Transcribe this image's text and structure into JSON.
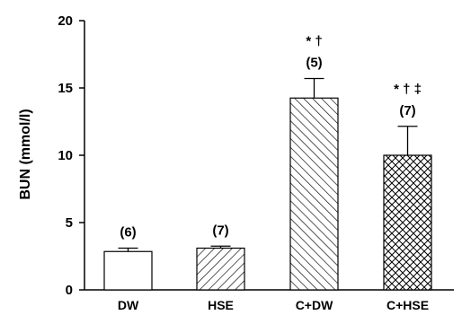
{
  "chart_data": {
    "type": "bar",
    "ylabel": "BUN (mmol/l)",
    "xlabel": "",
    "ylim": [
      0,
      20
    ],
    "yticks": [
      "0",
      "5",
      "10",
      "15",
      "20"
    ],
    "categories": [
      "DW",
      "HSE",
      "C+DW",
      "C+HSE"
    ],
    "values": [
      2.85,
      3.1,
      14.25,
      10.0
    ],
    "errors": [
      0.25,
      0.15,
      1.45,
      2.15
    ],
    "sample_sizes": [
      "(6)",
      "(7)",
      "(5)",
      "(7)"
    ],
    "significance": [
      "",
      "",
      "* †",
      "* † ‡"
    ],
    "patterns": [
      "none",
      "diagonal-up",
      "diagonal-down",
      "crosshatch"
    ]
  }
}
